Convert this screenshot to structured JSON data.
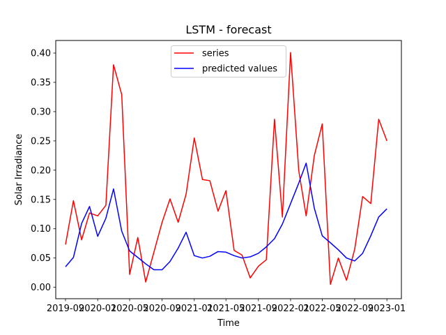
{
  "chart_data": {
    "type": "line",
    "title": "LSTM - forecast",
    "xlabel": "Time",
    "ylabel": "Solar Irradiance",
    "ylim": [
      -0.0195,
      0.4215
    ],
    "yticks": [
      0.0,
      0.05,
      0.1,
      0.15,
      0.2,
      0.25,
      0.3,
      0.35,
      0.4
    ],
    "ytick_labels": [
      "0.00",
      "0.05",
      "0.10",
      "0.15",
      "0.20",
      "0.25",
      "0.30",
      "0.35",
      "0.40"
    ],
    "xlim": [
      "2019-07-26",
      "2023-02-25"
    ],
    "xticks": [
      "2019-09-01",
      "2020-01-01",
      "2020-05-01",
      "2020-09-01",
      "2021-01-01",
      "2021-05-01",
      "2021-09-01",
      "2022-01-01",
      "2022-05-01",
      "2022-09-01",
      "2023-01-01"
    ],
    "xtick_labels": [
      "2019-09",
      "2020-01",
      "2020-05",
      "2020-09",
      "2021-01",
      "2021-05",
      "2021-09",
      "2022-01",
      "2022-05",
      "2022-09",
      "2023-01"
    ],
    "x": [
      "2019-09-01",
      "2019-10-01",
      "2019-11-01",
      "2019-12-01",
      "2020-01-01",
      "2020-02-01",
      "2020-03-01",
      "2020-04-01",
      "2020-05-01",
      "2020-06-01",
      "2020-07-01",
      "2020-08-01",
      "2020-09-01",
      "2020-10-01",
      "2020-11-01",
      "2020-12-01",
      "2021-01-01",
      "2021-02-01",
      "2021-03-01",
      "2021-04-01",
      "2021-05-01",
      "2021-06-01",
      "2021-07-01",
      "2021-08-01",
      "2021-09-01",
      "2021-10-01",
      "2021-11-01",
      "2021-12-01",
      "2022-01-01",
      "2022-02-01",
      "2022-03-01",
      "2022-04-01",
      "2022-05-01",
      "2022-06-01",
      "2022-07-01",
      "2022-08-01",
      "2022-09-01",
      "2022-10-01",
      "2022-11-01",
      "2022-12-01",
      "2023-01-01"
    ],
    "series": [
      {
        "name": "series",
        "color": "#ff0000",
        "values": [
          0.073,
          0.148,
          0.081,
          0.127,
          0.122,
          0.14,
          0.38,
          0.329,
          0.022,
          0.085,
          0.009,
          0.06,
          0.111,
          0.151,
          0.111,
          0.159,
          0.255,
          0.184,
          0.182,
          0.13,
          0.165,
          0.063,
          0.055,
          0.016,
          0.036,
          0.047,
          0.287,
          0.12,
          0.401,
          0.199,
          0.122,
          0.225,
          0.279,
          0.005,
          0.05,
          0.012,
          0.065,
          0.155,
          0.143,
          0.287,
          0.25
        ]
      },
      {
        "name": "predicted values",
        "color": "#0000ff",
        "values": [
          0.035,
          0.051,
          0.109,
          0.138,
          0.087,
          0.118,
          0.168,
          0.096,
          0.062,
          0.051,
          0.04,
          0.03,
          0.03,
          0.044,
          0.067,
          0.094,
          0.054,
          0.05,
          0.053,
          0.061,
          0.06,
          0.054,
          0.05,
          0.052,
          0.058,
          0.069,
          0.083,
          0.108,
          0.143,
          0.178,
          0.212,
          0.135,
          0.088,
          0.076,
          0.064,
          0.05,
          0.045,
          0.058,
          0.088,
          0.12,
          0.134
        ]
      }
    ],
    "grid": false,
    "legend_position": "upper center"
  }
}
